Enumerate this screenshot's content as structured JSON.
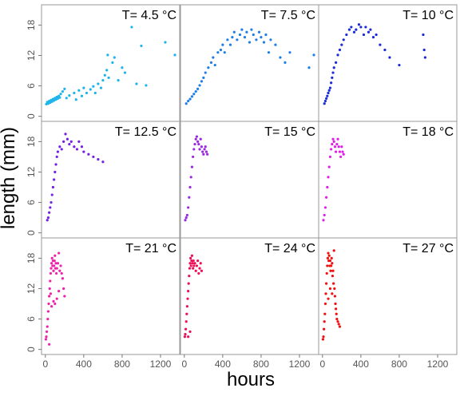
{
  "chart_data": {
    "type": "scatter",
    "layout": "3x3 faceted grid, shared axes",
    "xlabel": "hours",
    "ylabel": "length (mm)",
    "xlim": [
      -40,
      1400
    ],
    "ylim": [
      -1,
      22
    ],
    "xticks": [
      0,
      400,
      800,
      1200
    ],
    "yticks": [
      0,
      6,
      12,
      18
    ],
    "grid": false,
    "legend": "none",
    "panels": [
      {
        "title": "T= 4.5 °C",
        "color": "#1cb4ea",
        "points": [
          [
            10,
            2.4
          ],
          [
            20,
            2.8
          ],
          [
            30,
            2.5
          ],
          [
            40,
            3.0
          ],
          [
            50,
            2.7
          ],
          [
            60,
            3.2
          ],
          [
            70,
            2.9
          ],
          [
            80,
            3.4
          ],
          [
            90,
            3.1
          ],
          [
            100,
            3.6
          ],
          [
            110,
            3.3
          ],
          [
            120,
            3.8
          ],
          [
            130,
            3.5
          ],
          [
            140,
            4.0
          ],
          [
            150,
            3.7
          ],
          [
            160,
            4.4
          ],
          [
            180,
            4.9
          ],
          [
            200,
            5.4
          ],
          [
            220,
            3.6
          ],
          [
            250,
            4.1
          ],
          [
            300,
            4.6
          ],
          [
            320,
            3.3
          ],
          [
            350,
            5.1
          ],
          [
            380,
            4.0
          ],
          [
            400,
            5.6
          ],
          [
            430,
            4.6
          ],
          [
            470,
            5.3
          ],
          [
            500,
            5.9
          ],
          [
            520,
            4.6
          ],
          [
            550,
            6.4
          ],
          [
            580,
            5.6
          ],
          [
            600,
            7.1
          ],
          [
            620,
            8.1
          ],
          [
            640,
            9.1
          ],
          [
            650,
            12.1
          ],
          [
            660,
            7.6
          ],
          [
            700,
            10.6
          ],
          [
            720,
            11.6
          ],
          [
            760,
            7.1
          ],
          [
            800,
            9.6
          ],
          [
            830,
            8.6
          ],
          [
            900,
            17.6
          ],
          [
            950,
            6.4
          ],
          [
            1000,
            13.9
          ],
          [
            1050,
            6.1
          ],
          [
            1250,
            14.6
          ],
          [
            1350,
            12.1
          ]
        ]
      },
      {
        "title": "T= 7.5 °C",
        "color": "#1e7ee6",
        "points": [
          [
            20,
            2.5
          ],
          [
            40,
            3.0
          ],
          [
            60,
            3.4
          ],
          [
            80,
            3.9
          ],
          [
            100,
            4.4
          ],
          [
            120,
            4.9
          ],
          [
            140,
            5.4
          ],
          [
            160,
            6.1
          ],
          [
            180,
            6.9
          ],
          [
            200,
            7.6
          ],
          [
            220,
            8.6
          ],
          [
            250,
            9.6
          ],
          [
            280,
            10.6
          ],
          [
            300,
            11.6
          ],
          [
            320,
            10.1
          ],
          [
            350,
            12.6
          ],
          [
            380,
            13.1
          ],
          [
            400,
            14.1
          ],
          [
            420,
            12.6
          ],
          [
            450,
            15.1
          ],
          [
            480,
            14.1
          ],
          [
            500,
            15.6
          ],
          [
            520,
            16.6
          ],
          [
            550,
            15.1
          ],
          [
            580,
            16.1
          ],
          [
            600,
            17.1
          ],
          [
            630,
            15.6
          ],
          [
            650,
            16.6
          ],
          [
            680,
            14.6
          ],
          [
            700,
            17.1
          ],
          [
            720,
            16.1
          ],
          [
            750,
            15.1
          ],
          [
            780,
            16.6
          ],
          [
            800,
            15.6
          ],
          [
            830,
            14.6
          ],
          [
            850,
            16.1
          ],
          [
            880,
            12.6
          ],
          [
            900,
            15.1
          ],
          [
            950,
            14.1
          ],
          [
            1000,
            11.6
          ],
          [
            1050,
            10.6
          ],
          [
            1100,
            12.6
          ],
          [
            1300,
            9.6
          ],
          [
            1350,
            12.1
          ]
        ]
      },
      {
        "title": "T= 10 °C",
        "color": "#1c2bd9",
        "points": [
          [
            20,
            2.5
          ],
          [
            30,
            3.0
          ],
          [
            40,
            3.5
          ],
          [
            50,
            4.0
          ],
          [
            60,
            4.6
          ],
          [
            70,
            5.1
          ],
          [
            80,
            5.6
          ],
          [
            90,
            6.6
          ],
          [
            100,
            7.6
          ],
          [
            110,
            8.6
          ],
          [
            120,
            9.6
          ],
          [
            140,
            10.6
          ],
          [
            160,
            12.1
          ],
          [
            180,
            13.1
          ],
          [
            200,
            14.1
          ],
          [
            220,
            15.1
          ],
          [
            250,
            16.1
          ],
          [
            280,
            17.1
          ],
          [
            300,
            17.6
          ],
          [
            330,
            16.6
          ],
          [
            350,
            17.1
          ],
          [
            380,
            18.1
          ],
          [
            400,
            17.6
          ],
          [
            430,
            16.1
          ],
          [
            450,
            17.6
          ],
          [
            480,
            16.6
          ],
          [
            500,
            17.1
          ],
          [
            530,
            15.6
          ],
          [
            560,
            16.1
          ],
          [
            600,
            14.1
          ],
          [
            650,
            13.1
          ],
          [
            700,
            11.6
          ],
          [
            800,
            10.1
          ],
          [
            1050,
            16.1
          ],
          [
            1060,
            13.1
          ],
          [
            1070,
            11.6
          ]
        ]
      },
      {
        "title": "T= 12.5 °C",
        "color": "#7322e2",
        "points": [
          [
            20,
            2.5
          ],
          [
            30,
            3.0
          ],
          [
            40,
            4.0
          ],
          [
            50,
            5.0
          ],
          [
            60,
            6.0
          ],
          [
            70,
            7.5
          ],
          [
            80,
            9.0
          ],
          [
            90,
            10.5
          ],
          [
            100,
            12.0
          ],
          [
            110,
            13.5
          ],
          [
            120,
            15.0
          ],
          [
            130,
            16.0
          ],
          [
            150,
            17.0
          ],
          [
            170,
            16.5
          ],
          [
            190,
            18.0
          ],
          [
            210,
            19.5
          ],
          [
            230,
            18.5
          ],
          [
            250,
            17.5
          ],
          [
            270,
            18.0
          ],
          [
            300,
            17.0
          ],
          [
            330,
            16.5
          ],
          [
            350,
            18.0
          ],
          [
            380,
            17.0
          ],
          [
            400,
            16.0
          ],
          [
            450,
            15.5
          ],
          [
            500,
            15.0
          ],
          [
            550,
            14.5
          ],
          [
            600,
            14.0
          ]
        ]
      },
      {
        "title": "T= 15 °C",
        "color": "#9a2ae0",
        "points": [
          [
            10,
            2.5
          ],
          [
            20,
            3.0
          ],
          [
            30,
            3.5
          ],
          [
            40,
            5.0
          ],
          [
            50,
            7.0
          ],
          [
            60,
            9.0
          ],
          [
            70,
            11.0
          ],
          [
            80,
            13.0
          ],
          [
            90,
            15.0
          ],
          [
            100,
            16.5
          ],
          [
            110,
            17.5
          ],
          [
            120,
            18.5
          ],
          [
            130,
            19.0
          ],
          [
            140,
            18.0
          ],
          [
            150,
            17.5
          ],
          [
            160,
            16.5
          ],
          [
            170,
            18.5
          ],
          [
            180,
            17.0
          ],
          [
            190,
            16.0
          ],
          [
            200,
            15.5
          ],
          [
            210,
            16.5
          ],
          [
            220,
            17.0
          ],
          [
            230,
            16.0
          ],
          [
            240,
            15.5
          ]
        ]
      },
      {
        "title": "T= 18 °C",
        "color": "#e020e8",
        "points": [
          [
            10,
            2.5
          ],
          [
            20,
            3.5
          ],
          [
            30,
            5.0
          ],
          [
            40,
            7.0
          ],
          [
            50,
            9.0
          ],
          [
            60,
            11.0
          ],
          [
            70,
            13.0
          ],
          [
            80,
            15.0
          ],
          [
            90,
            16.5
          ],
          [
            100,
            17.5
          ],
          [
            110,
            18.5
          ],
          [
            120,
            18.0
          ],
          [
            130,
            17.0
          ],
          [
            140,
            16.0
          ],
          [
            150,
            17.5
          ],
          [
            160,
            18.5
          ],
          [
            170,
            17.0
          ],
          [
            180,
            16.0
          ],
          [
            190,
            15.0
          ],
          [
            200,
            17.0
          ],
          [
            210,
            16.0
          ],
          [
            220,
            15.5
          ]
        ]
      },
      {
        "title": "T= 21 °C",
        "color": "#ee22a8",
        "points": [
          [
            5,
            2.0
          ],
          [
            10,
            2.5
          ],
          [
            15,
            3.5
          ],
          [
            20,
            4.5
          ],
          [
            25,
            6.0
          ],
          [
            30,
            7.5
          ],
          [
            35,
            9.0
          ],
          [
            40,
            10.5
          ],
          [
            45,
            12.0
          ],
          [
            50,
            13.5
          ],
          [
            55,
            15.0
          ],
          [
            60,
            16.0
          ],
          [
            65,
            17.0
          ],
          [
            70,
            18.0
          ],
          [
            75,
            16.5
          ],
          [
            80,
            17.5
          ],
          [
            85,
            15.5
          ],
          [
            90,
            16.5
          ],
          [
            95,
            17.5
          ],
          [
            100,
            18.5
          ],
          [
            105,
            16.0
          ],
          [
            110,
            17.0
          ],
          [
            115,
            15.0
          ],
          [
            120,
            16.0
          ],
          [
            130,
            17.0
          ],
          [
            140,
            19.0
          ],
          [
            150,
            15.5
          ],
          [
            160,
            16.5
          ],
          [
            170,
            15.0
          ],
          [
            180,
            14.0
          ],
          [
            190,
            12.0
          ],
          [
            200,
            10.5
          ],
          [
            55,
            11.0
          ],
          [
            65,
            8.5
          ],
          [
            85,
            9.5
          ],
          [
            100,
            9.0
          ],
          [
            120,
            10.0
          ],
          [
            140,
            11.5
          ],
          [
            40,
            1.0
          ]
        ]
      },
      {
        "title": "T= 24 °C",
        "color": "#ec0f58",
        "points": [
          [
            5,
            2.5
          ],
          [
            10,
            3.0
          ],
          [
            15,
            4.0
          ],
          [
            20,
            5.5
          ],
          [
            25,
            7.0
          ],
          [
            30,
            8.5
          ],
          [
            35,
            10.0
          ],
          [
            40,
            11.5
          ],
          [
            45,
            13.0
          ],
          [
            50,
            14.5
          ],
          [
            55,
            16.0
          ],
          [
            60,
            17.0
          ],
          [
            65,
            18.0
          ],
          [
            70,
            16.5
          ],
          [
            75,
            17.5
          ],
          [
            80,
            18.5
          ],
          [
            85,
            17.0
          ],
          [
            90,
            16.0
          ],
          [
            95,
            17.5
          ],
          [
            100,
            16.5
          ],
          [
            110,
            17.0
          ],
          [
            120,
            15.5
          ],
          [
            130,
            16.5
          ],
          [
            140,
            17.5
          ],
          [
            150,
            15.0
          ],
          [
            160,
            16.0
          ],
          [
            170,
            17.0
          ],
          [
            180,
            15.5
          ],
          [
            40,
            2.5
          ],
          [
            60,
            3.5
          ]
        ]
      },
      {
        "title": "T= 27 °C",
        "color": "#f01010",
        "points": [
          [
            5,
            2.0
          ],
          [
            10,
            2.5
          ],
          [
            15,
            4.0
          ],
          [
            20,
            5.5
          ],
          [
            25,
            7.0
          ],
          [
            30,
            9.0
          ],
          [
            35,
            11.0
          ],
          [
            40,
            13.0
          ],
          [
            45,
            15.0
          ],
          [
            50,
            16.5
          ],
          [
            55,
            18.0
          ],
          [
            60,
            19.0
          ],
          [
            65,
            17.5
          ],
          [
            70,
            18.5
          ],
          [
            75,
            16.5
          ],
          [
            80,
            17.5
          ],
          [
            85,
            15.5
          ],
          [
            90,
            16.5
          ],
          [
            95,
            18.0
          ],
          [
            100,
            17.0
          ],
          [
            105,
            14.5
          ],
          [
            110,
            15.5
          ],
          [
            115,
            13.0
          ],
          [
            120,
            19.5
          ],
          [
            125,
            12.0
          ],
          [
            130,
            10.5
          ],
          [
            135,
            9.0
          ],
          [
            140,
            8.0
          ],
          [
            145,
            7.0
          ],
          [
            150,
            6.0
          ],
          [
            160,
            5.5
          ],
          [
            170,
            5.0
          ],
          [
            180,
            4.5
          ],
          [
            60,
            10.0
          ],
          [
            80,
            12.0
          ],
          [
            100,
            11.0
          ]
        ]
      }
    ]
  }
}
